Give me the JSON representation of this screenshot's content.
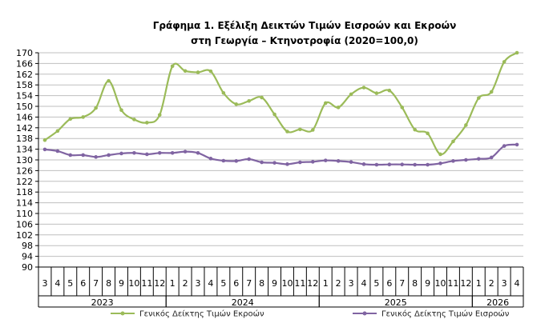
{
  "chart_data": {
    "type": "line",
    "title_lines": [
      "Γράφημα 1. Εξέλιξη Δεικτών Τιμών Εισροών και Εκροών",
      "στη Γεωργία – Κτηνοτροφία (2020=100,0)"
    ],
    "ylim": [
      90,
      170
    ],
    "yticks": [
      "90",
      "94",
      "98",
      "102",
      "106",
      "110",
      "114",
      "118",
      "122",
      "126",
      "130",
      "134",
      "138",
      "142",
      "146",
      "150",
      "154",
      "158",
      "162",
      "166",
      "170"
    ],
    "months": [
      "3",
      "4",
      "5",
      "6",
      "7",
      "8",
      "9",
      "10",
      "11",
      "12",
      "1",
      "2",
      "3",
      "4",
      "5",
      "6",
      "7",
      "8",
      "9",
      "10",
      "11",
      "12",
      "1",
      "2",
      "3",
      "4",
      "5",
      "6",
      "7",
      "8",
      "9",
      "10",
      "11",
      "12",
      "1",
      "2",
      "3",
      "4"
    ],
    "years": [
      {
        "label": "2023",
        "start": 0,
        "end": 10
      },
      {
        "label": "2024",
        "start": 10,
        "end": 22
      },
      {
        "label": "2025",
        "start": 22,
        "end": 34
      },
      {
        "label": "2026",
        "start": 34,
        "end": 38
      }
    ],
    "series": [
      {
        "name": "Γενικός Δείκτης Τιμών Εκροών",
        "color": "#9bbb59",
        "values": [
          137.4,
          140.8,
          145.3,
          146.0,
          149.4,
          159.5,
          148.6,
          145.1,
          143.9,
          146.8,
          165.0,
          163.2,
          162.7,
          163.1,
          155.0,
          150.8,
          152.0,
          153.3,
          147.0,
          140.6,
          141.4,
          141.2,
          151.2,
          149.6,
          154.5,
          157.0,
          154.9,
          155.9,
          149.6,
          141.3,
          139.9,
          132.1,
          136.9,
          143.0,
          153.1,
          155.4,
          166.6,
          170.0
        ]
      },
      {
        "name": "Γενικός Δείκτης Τιμών Εισροών",
        "color": "#8064a2",
        "values": [
          133.9,
          133.3,
          131.8,
          131.8,
          131.1,
          131.8,
          132.4,
          132.6,
          132.1,
          132.6,
          132.6,
          133.1,
          132.6,
          130.5,
          129.7,
          129.6,
          130.3,
          129.1,
          128.9,
          128.4,
          129.1,
          129.3,
          129.8,
          129.6,
          129.2,
          128.4,
          128.2,
          128.3,
          128.3,
          128.2,
          128.2,
          128.7,
          129.6,
          130.0,
          130.4,
          130.9,
          135.2,
          135.7
        ]
      }
    ]
  }
}
